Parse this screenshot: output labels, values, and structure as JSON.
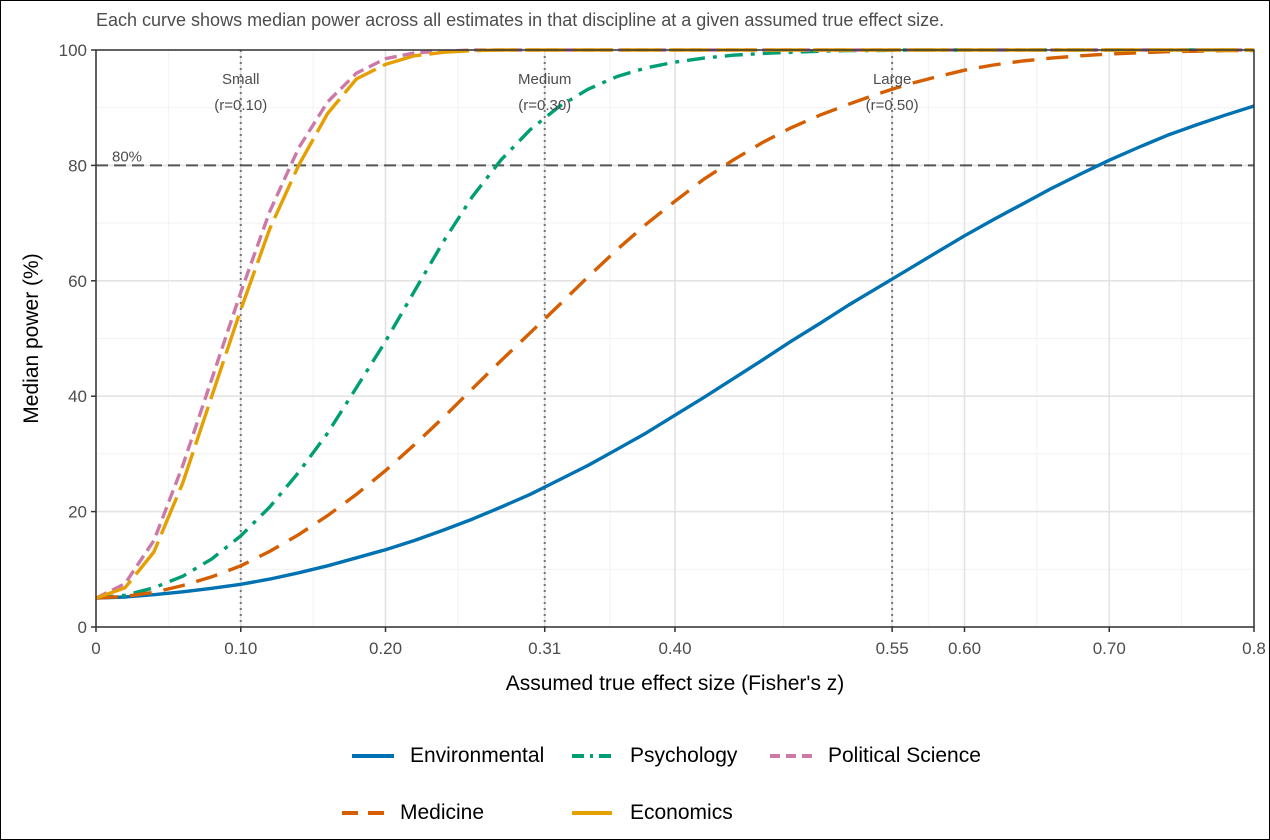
{
  "subtitle": "Each curve shows median power across all estimates in that discipline at a given assumed true effect size.",
  "chart_data": {
    "type": "line",
    "title": "",
    "subtitle": "Each curve shows median power across all estimates in that discipline at a given assumed true effect size.",
    "xlabel": "Assumed true effect size (Fisher's z)",
    "ylabel": "Median power (%)",
    "xlim": [
      0,
      0.8
    ],
    "ylim": [
      0,
      100
    ],
    "x_ticks": [
      0,
      0.1,
      0.2,
      0.31,
      0.4,
      0.55,
      0.6,
      0.7,
      0.8
    ],
    "x_tick_labels": [
      "0",
      "0.10",
      "0.20",
      "0.31",
      "0.40",
      "0.55",
      "0.60",
      "0.70",
      "0.8"
    ],
    "y_ticks": [
      0,
      20,
      40,
      60,
      80,
      100
    ],
    "y_tick_labels": [
      "0",
      "20",
      "40",
      "60",
      "80",
      "100"
    ],
    "grid": true,
    "legend_position": "bottom",
    "reference_line": {
      "y": 80,
      "label": "80%"
    },
    "vertical_refs": [
      {
        "x": 0.1,
        "label1": "Small",
        "label2": "(r=0.10)"
      },
      {
        "x": 0.31,
        "label1": "Medium",
        "label2": "(r=0.30)"
      },
      {
        "x": 0.55,
        "label1": "Large",
        "label2": "(r=0.50)"
      }
    ],
    "x": [
      0,
      0.02,
      0.04,
      0.06,
      0.08,
      0.1,
      0.12,
      0.14,
      0.16,
      0.18,
      0.2,
      0.22,
      0.24,
      0.26,
      0.28,
      0.3,
      0.32,
      0.34,
      0.36,
      0.38,
      0.4,
      0.42,
      0.44,
      0.46,
      0.48,
      0.5,
      0.52,
      0.54,
      0.56,
      0.58,
      0.6,
      0.62,
      0.64,
      0.66,
      0.68,
      0.7,
      0.72,
      0.74,
      0.76,
      0.78,
      0.8
    ],
    "series": [
      {
        "name": "Environmental",
        "color": "#0072B2",
        "dash": "solid",
        "values": [
          5,
          5.2,
          5.6,
          6.1,
          6.7,
          7.4,
          8.3,
          9.4,
          10.6,
          12.0,
          13.4,
          15.0,
          16.8,
          18.7,
          20.8,
          23.0,
          25.5,
          28.0,
          30.8,
          33.6,
          36.7,
          39.8,
          43.0,
          46.2,
          49.5,
          52.6,
          55.8,
          58.8,
          61.8,
          64.8,
          67.8,
          70.6,
          73.3,
          76.0,
          78.5,
          80.9,
          83.1,
          85.2,
          87.0,
          88.7,
          90.3
        ]
      },
      {
        "name": "Psychology",
        "color": "#009E73",
        "dash": "dashdot",
        "values": [
          5,
          5.5,
          6.8,
          8.8,
          11.8,
          15.8,
          20.8,
          26.8,
          33.6,
          41.5,
          49.5,
          58.2,
          66.8,
          74.6,
          81.0,
          86.2,
          90.2,
          93.2,
          95.4,
          96.9,
          97.9,
          98.6,
          99.1,
          99.4,
          99.6,
          99.8,
          99.9,
          99.9,
          100,
          100,
          100,
          100,
          100,
          100,
          100,
          100,
          100,
          100,
          100,
          100,
          100
        ]
      },
      {
        "name": "Political Science",
        "color": "#CC79A7",
        "dash": "dash",
        "values": [
          5,
          7.5,
          15,
          28,
          43,
          58,
          72,
          83,
          91,
          96,
          98.5,
          99.5,
          99.8,
          100,
          100,
          100,
          100,
          100,
          100,
          100,
          100,
          100,
          100,
          100,
          100,
          100,
          100,
          100,
          100,
          100,
          100,
          100,
          100,
          100,
          100,
          100,
          100,
          100,
          100,
          100,
          100
        ]
      },
      {
        "name": "Medicine",
        "color": "#D55E00",
        "dash": "longdash",
        "values": [
          5,
          5.3,
          6.0,
          7.2,
          8.7,
          10.6,
          13.1,
          16.0,
          19.3,
          23.0,
          27.1,
          31.6,
          36.3,
          41.3,
          46.2,
          51.0,
          55.8,
          60.7,
          65.4,
          69.8,
          73.8,
          77.6,
          80.9,
          83.9,
          86.5,
          88.7,
          90.6,
          92.4,
          94.0,
          95.3,
          96.5,
          97.4,
          98.1,
          98.6,
          99.0,
          99.3,
          99.5,
          99.7,
          99.8,
          99.9,
          99.9
        ]
      },
      {
        "name": "Economics",
        "color": "#E69F00",
        "dash": "longdash",
        "values": [
          5,
          6.8,
          13,
          25,
          40,
          55,
          69,
          80,
          89,
          95,
          97.5,
          99,
          99.6,
          99.9,
          100,
          100,
          100,
          100,
          100,
          100,
          100,
          100,
          100,
          100,
          100,
          100,
          100,
          100,
          100,
          100,
          100,
          100,
          100,
          100,
          100,
          100,
          100,
          100,
          100,
          100,
          100
        ]
      }
    ]
  },
  "legend": {
    "items": [
      {
        "label": "Environmental",
        "color": "#0072B2"
      },
      {
        "label": "Psychology",
        "color": "#009E73"
      },
      {
        "label": "Political Science",
        "color": "#CC79A7"
      },
      {
        "label": "Medicine",
        "color": "#D55E00"
      },
      {
        "label": "Economics",
        "color": "#E69F00"
      }
    ]
  }
}
